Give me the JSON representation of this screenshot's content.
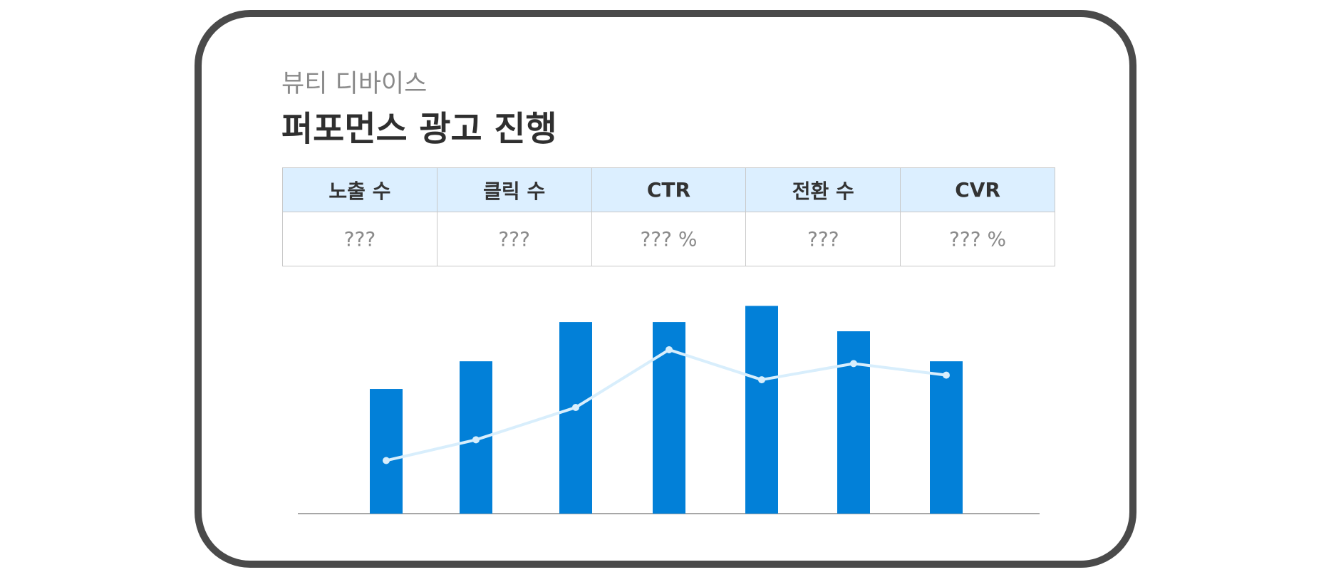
{
  "header": {
    "subtitle": "뷰티 디바이스",
    "title": "퍼포먼스 광고 진행"
  },
  "metrics_table": {
    "headers": [
      "노출 수",
      "클릭 수",
      "CTR",
      "전환 수",
      "CVR"
    ],
    "values": [
      "???",
      "???",
      "??? %",
      "???",
      "??? %"
    ]
  },
  "colors": {
    "bar": "#0280d8",
    "line": "#d8eefc",
    "table_header_bg": "#dcefff",
    "card_border": "#4a4a4a",
    "axis": "#8a8a8a"
  },
  "chart_data": {
    "type": "bar",
    "categories": [
      "",
      "",
      "",
      "",
      "",
      "",
      ""
    ],
    "ylim": [
      0,
      100
    ],
    "series": [
      {
        "type": "bar",
        "values": [
          54,
          66,
          83,
          83,
          90,
          79,
          66
        ]
      },
      {
        "type": "line",
        "values": [
          23,
          32,
          46,
          71,
          58,
          65,
          60
        ]
      }
    ],
    "grid": false,
    "legend": "none"
  }
}
